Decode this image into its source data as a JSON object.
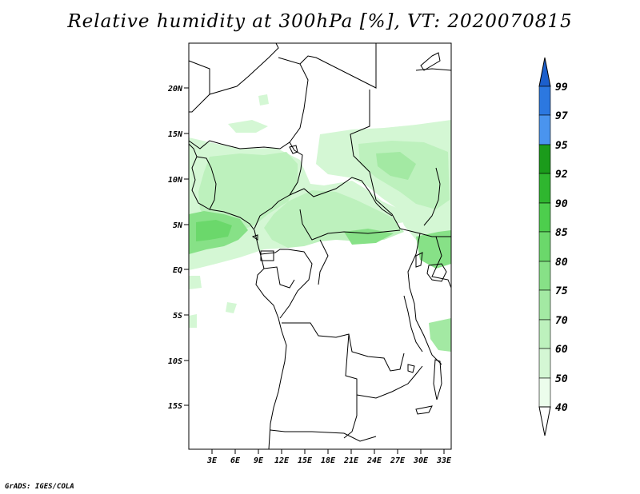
{
  "title": "Relative humidity at 300hPa [%], VT: 2020070815",
  "credit": "GrADS: IGES/COLA",
  "map": {
    "lon_range": [
      0,
      34
    ],
    "lat_range": [
      -20,
      24.5
    ],
    "lat_ticks": [
      "20N",
      "15N",
      "10N",
      "5N",
      "EQ",
      "5S",
      "10S",
      "15S"
    ],
    "lon_ticks": [
      "3E",
      "6E",
      "9E",
      "12E",
      "15E",
      "18E",
      "21E",
      "24E",
      "27E",
      "30E",
      "33E"
    ]
  },
  "colorbar": {
    "levels": [
      "99",
      "97",
      "95",
      "92",
      "90",
      "85",
      "80",
      "75",
      "70",
      "60",
      "50",
      "40"
    ],
    "colors": {
      "c40_50": "#ecfdec",
      "c50_60": "#d4f7d4",
      "c60_70": "#bdf1bd",
      "c70_75": "#a3e9a3",
      "c75_80": "#87e187",
      "c80_85": "#6bd86b",
      "c85_90": "#4dce4d",
      "c90_92": "#2fb62f",
      "c92_95": "#1b9b1b",
      "c95_97": "#4a94ee",
      "c97_99": "#2c78e0",
      "c99_up": "#1c5fcc"
    }
  }
}
